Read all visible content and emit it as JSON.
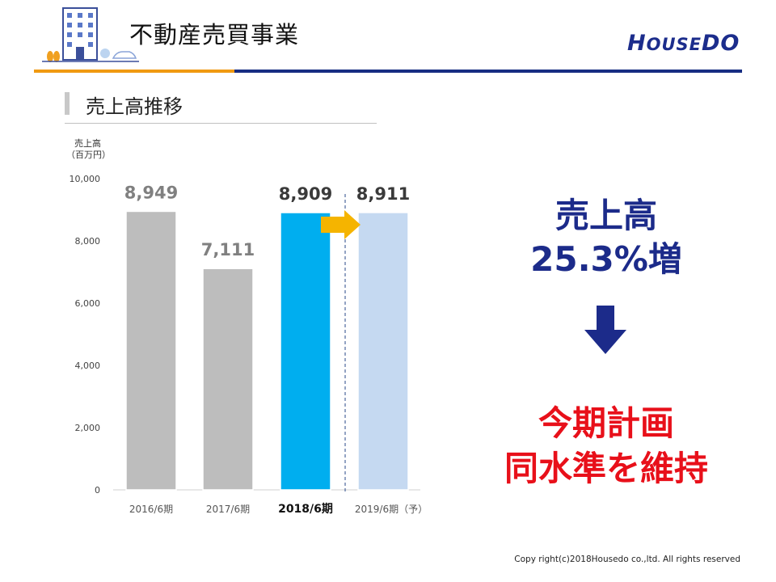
{
  "header": {
    "title": "不動産売買事業",
    "logo": "HOUSEDO",
    "accent_orange": "#f09a12",
    "accent_navy": "#172d82"
  },
  "section": {
    "title": "売上高推移"
  },
  "chart_data": {
    "type": "bar",
    "ylabel": "売上高\n（百万円）",
    "ylabel_line1": "売上高",
    "ylabel_line2": "（百万円）",
    "ylim": [
      0,
      10000
    ],
    "yticks": [
      "0",
      "2,000",
      "4,000",
      "6,000",
      "8,000",
      "10,000"
    ],
    "categories": [
      "2016/6期",
      "2017/6期",
      "2018/6期",
      "2019/6期（予）"
    ],
    "values": [
      8949,
      7111,
      8909,
      8911
    ],
    "data_labels": [
      "8,949",
      "7,111",
      "8,909",
      "8,911"
    ],
    "bar_colors": [
      "#bdbdbd",
      "#bdbdbd",
      "#00aeef",
      "#c5d9f1"
    ],
    "highlight_category": "2018/6期",
    "grid": false
  },
  "summary": {
    "headline_line1": "売上高",
    "headline_line2": "25.3%増",
    "plan_line1": "今期計画",
    "plan_line2": "同水準を維持",
    "headline_color": "#1c2b8a",
    "plan_color": "#e8101a"
  },
  "footer": {
    "copyright": "Copy right(c)2018Housedo co.,ltd. All rights reserved"
  }
}
